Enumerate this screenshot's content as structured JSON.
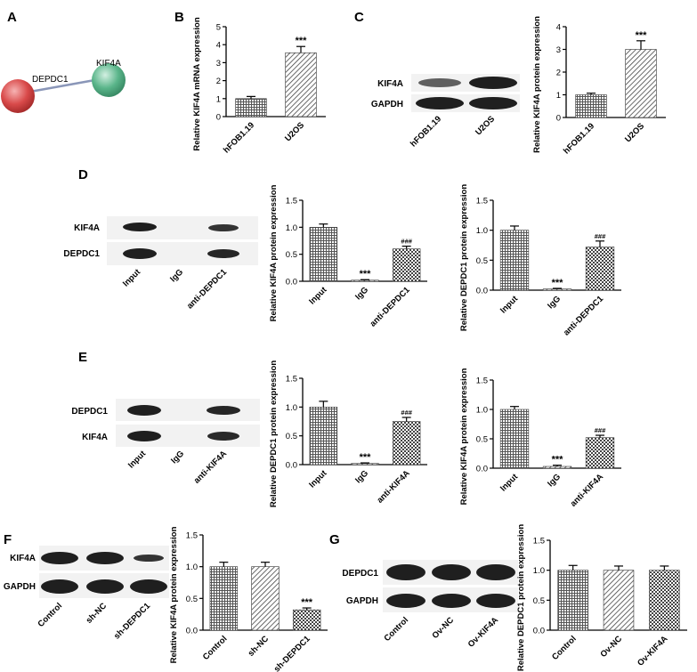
{
  "panels": {
    "A": {
      "letter": "A",
      "network": {
        "nodes": [
          "DEPDC1",
          "KIF4A"
        ],
        "colors": [
          "#d94a4a",
          "#5ab58a"
        ]
      }
    },
    "B": {
      "letter": "B"
    },
    "C": {
      "letter": "C",
      "blot": {
        "rows": [
          "KIF4A",
          "GAPDH"
        ],
        "lanes": [
          "hFOB1.19",
          "U2OS"
        ]
      }
    },
    "D": {
      "letter": "D",
      "blot": {
        "rows": [
          "KIF4A",
          "DEPDC1"
        ],
        "lanes": [
          "Input",
          "IgG",
          "anti-DEPDC1"
        ]
      }
    },
    "E": {
      "letter": "E",
      "blot": {
        "rows": [
          "DEPDC1",
          "KIF4A"
        ],
        "lanes": [
          "Input",
          "IgG",
          "anti-KIF4A"
        ]
      }
    },
    "F": {
      "letter": "F",
      "blot": {
        "rows": [
          "KIF4A",
          "GAPDH"
        ],
        "lanes": [
          "Control",
          "sh-NC",
          "sh-DEPDC1"
        ]
      }
    },
    "G": {
      "letter": "G",
      "blot": {
        "rows": [
          "DEPDC1",
          "GAPDH"
        ],
        "lanes": [
          "Control",
          "Ov-NC",
          "Ov-KIF4A"
        ]
      }
    }
  },
  "chart_data": [
    {
      "id": "B",
      "type": "bar",
      "categories": [
        "hFOB1.19",
        "U2OS"
      ],
      "values": [
        1.0,
        3.55
      ],
      "errors": [
        0.12,
        0.35
      ],
      "annotations": [
        "",
        "***"
      ],
      "ylabel": "Relative KIF4A mRNA expression",
      "ylim": [
        0,
        5
      ],
      "yticks": [
        0,
        1,
        2,
        3,
        4,
        5
      ]
    },
    {
      "id": "C",
      "type": "bar",
      "categories": [
        "hFOB1.19",
        "U2OS"
      ],
      "values": [
        1.0,
        3.0
      ],
      "errors": [
        0.07,
        0.38
      ],
      "annotations": [
        "",
        "***"
      ],
      "ylabel": "Relative KIF4A protein expression",
      "ylim": [
        0,
        4
      ],
      "yticks": [
        0,
        1,
        2,
        3,
        4
      ]
    },
    {
      "id": "D1",
      "type": "bar",
      "categories": [
        "Input",
        "IgG",
        "anti-DEPDC1"
      ],
      "values": [
        1.0,
        0.02,
        0.6
      ],
      "errors": [
        0.06,
        0.01,
        0.05
      ],
      "annotations": [
        "",
        "***",
        "###"
      ],
      "ylabel": "Relative KIF4A protein expression",
      "ylim": [
        0,
        1.5
      ],
      "yticks": [
        0.0,
        0.5,
        1.0,
        1.5
      ]
    },
    {
      "id": "D2",
      "type": "bar",
      "categories": [
        "Input",
        "IgG",
        "anti-DEPDC1"
      ],
      "values": [
        1.0,
        0.02,
        0.72
      ],
      "errors": [
        0.07,
        0.01,
        0.1
      ],
      "annotations": [
        "",
        "***",
        "###"
      ],
      "ylabel": "Relative DEPDC1 protein expression",
      "ylim": [
        0,
        1.5
      ],
      "yticks": [
        0.0,
        0.5,
        1.0,
        1.5
      ]
    },
    {
      "id": "E1",
      "type": "bar",
      "categories": [
        "Input",
        "IgG",
        "anti-KIF4A"
      ],
      "values": [
        1.0,
        0.02,
        0.75
      ],
      "errors": [
        0.1,
        0.01,
        0.07
      ],
      "annotations": [
        "",
        "***",
        "###"
      ],
      "ylabel": "Relative DEPDC1 protein expression",
      "ylim": [
        0,
        1.5
      ],
      "yticks": [
        0.0,
        0.5,
        1.0,
        1.5
      ]
    },
    {
      "id": "E2",
      "type": "bar",
      "categories": [
        "Input",
        "IgG",
        "anti-KIF4A"
      ],
      "values": [
        1.0,
        0.03,
        0.52
      ],
      "errors": [
        0.05,
        0.02,
        0.04
      ],
      "annotations": [
        "",
        "***",
        "###"
      ],
      "ylabel": "Relative KIF4A protein expression",
      "ylim": [
        0,
        1.5
      ],
      "yticks": [
        0.0,
        0.5,
        1.0,
        1.5
      ]
    },
    {
      "id": "F",
      "type": "bar",
      "categories": [
        "Control",
        "sh-NC",
        "sh-DEPDC1"
      ],
      "values": [
        1.0,
        1.0,
        0.32
      ],
      "errors": [
        0.07,
        0.07,
        0.03
      ],
      "annotations": [
        "",
        "",
        "***"
      ],
      "ylabel": "Relative KIF4A protein expression",
      "ylim": [
        0,
        1.5
      ],
      "yticks": [
        0.0,
        0.5,
        1.0,
        1.5
      ]
    },
    {
      "id": "G",
      "type": "bar",
      "categories": [
        "Control",
        "Ov-NC",
        "Ov-KIF4A"
      ],
      "values": [
        1.0,
        1.0,
        1.0
      ],
      "errors": [
        0.08,
        0.07,
        0.07
      ],
      "annotations": [
        "",
        "",
        ""
      ],
      "ylabel": "Relative DEPDC1 protein expression",
      "ylim": [
        0,
        1.5
      ],
      "yticks": [
        0.0,
        0.5,
        1.0,
        1.5
      ]
    }
  ]
}
